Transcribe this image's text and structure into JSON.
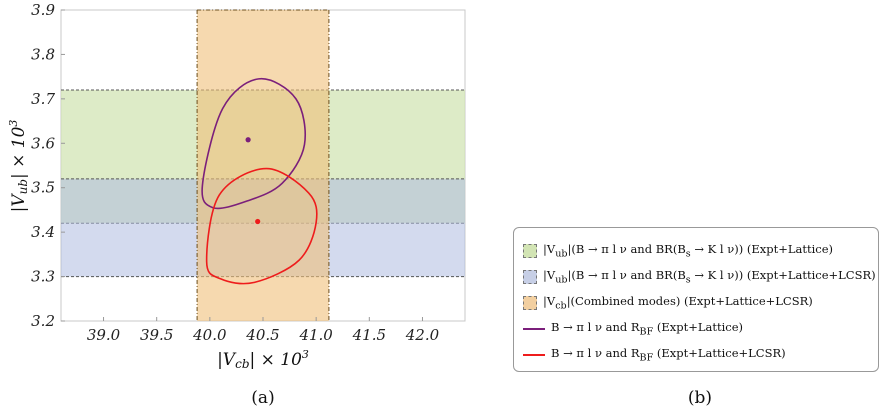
{
  "chart_data": {
    "type": "scatter",
    "xlabel": "|V_cb| × 10³",
    "ylabel": "|V_ub| × 10³",
    "xlim": [
      38.6,
      42.4
    ],
    "ylim": [
      3.2,
      3.9
    ],
    "x_ticks": [
      39.0,
      39.5,
      40.0,
      40.5,
      41.0,
      41.5,
      42.0
    ],
    "x_tick_labels": [
      "39.0",
      "39.5",
      "40.0",
      "40.5",
      "41.0",
      "41.5",
      "42.0"
    ],
    "y_ticks": [
      3.2,
      3.3,
      3.4,
      3.5,
      3.6,
      3.7,
      3.8,
      3.9
    ],
    "y_tick_labels": [
      "3.2",
      "3.3",
      "3.4",
      "3.5",
      "3.6",
      "3.7",
      "3.8",
      "3.9"
    ],
    "grid": false,
    "bands": [
      {
        "orientation": "horizontal",
        "from": 3.42,
        "to": 3.72,
        "color": "#d2e4b4",
        "opacity": 0.75
      },
      {
        "orientation": "horizontal",
        "from": 3.3,
        "to": 3.52,
        "color": "#aebbe0",
        "opacity": 0.55
      },
      {
        "orientation": "vertical",
        "from": 39.88,
        "to": 41.12,
        "color": "#f0c07a",
        "opacity": 0.6
      }
    ],
    "ellipses": [
      {
        "color": "#7b1f7b",
        "center": [
          40.36,
          3.608
        ],
        "boundary": [
          [
            39.93,
            3.505
          ],
          [
            40.12,
            3.678
          ],
          [
            40.46,
            3.745
          ],
          [
            40.81,
            3.7
          ],
          [
            40.89,
            3.597
          ],
          [
            40.68,
            3.51
          ],
          [
            40.35,
            3.47
          ],
          [
            40.03,
            3.455
          ]
        ]
      },
      {
        "color": "#ee1c1c",
        "center": [
          40.45,
          3.424
        ],
        "boundary": [
          [
            39.97,
            3.334
          ],
          [
            40.09,
            3.484
          ],
          [
            40.53,
            3.543
          ],
          [
            40.93,
            3.488
          ],
          [
            41.0,
            3.422
          ],
          [
            40.84,
            3.337
          ],
          [
            40.42,
            3.287
          ],
          [
            40.1,
            3.295
          ]
        ]
      }
    ],
    "points": [
      {
        "x": 40.36,
        "y": 3.608,
        "color": "#7b1f7b"
      },
      {
        "x": 40.45,
        "y": 3.424,
        "color": "#ee1c1c"
      }
    ]
  },
  "captions": {
    "a": "(a)",
    "b": "(b)"
  },
  "legend": {
    "items": [
      {
        "kind": "fill",
        "color": "#d2e4b4",
        "label": "|V_ub|(B → π l ν and BR(B_s → K l ν)) (Expt+Lattice)"
      },
      {
        "kind": "fill",
        "color": "#c7cfe6",
        "label": "|V_ub|(B → π l ν and BR(B_s → K l ν)) (Expt+Lattice+LCSR)"
      },
      {
        "kind": "fill",
        "color": "#f2cfa0",
        "label": "|V_cb|(Combined modes) (Expt+Lattice+LCSR)"
      },
      {
        "kind": "line",
        "color": "#7b1f7b",
        "label": "B → π l ν and R_BF (Expt+Lattice)"
      },
      {
        "kind": "line",
        "color": "#ee1c1c",
        "label": "B → π l ν and R_BF (Expt+Lattice+LCSR)"
      }
    ]
  }
}
